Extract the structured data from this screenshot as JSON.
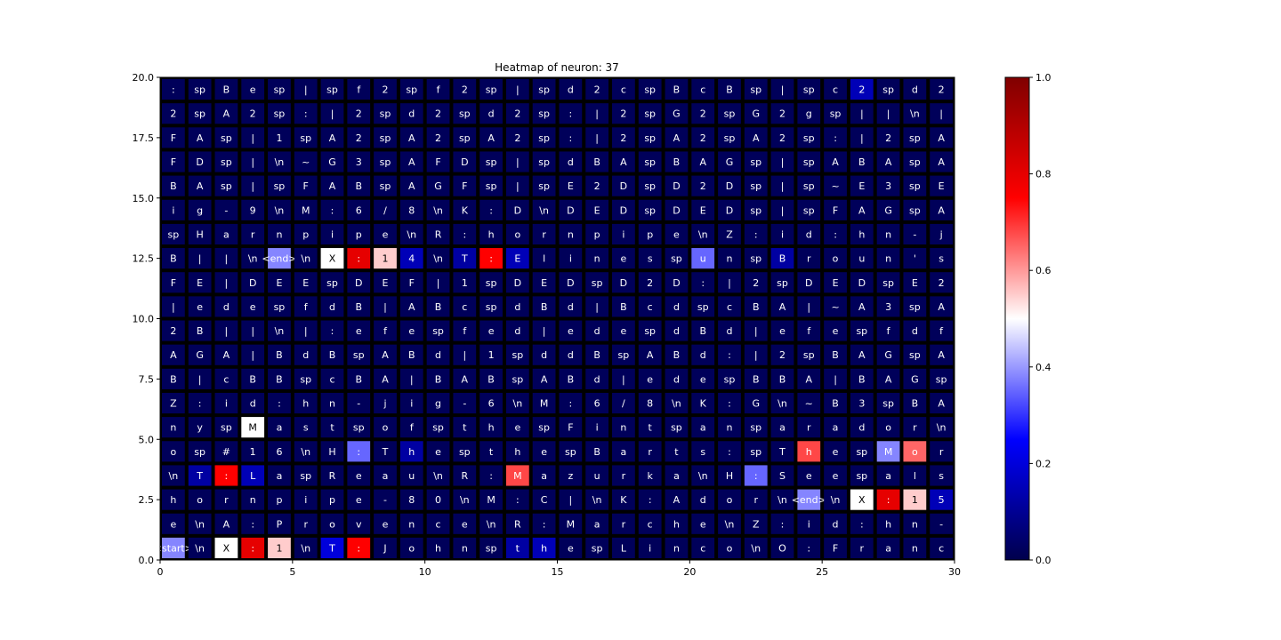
{
  "chart_data": {
    "type": "heatmap",
    "title": "Heatmap of neuron: 37",
    "xlim": [
      0,
      30
    ],
    "ylim": [
      0,
      20
    ],
    "x_ticks": [
      0,
      5,
      10,
      15,
      20,
      25,
      30
    ],
    "y_ticks": [
      0.0,
      2.5,
      5.0,
      7.5,
      10.0,
      12.5,
      15.0,
      17.5,
      20.0
    ],
    "x_tick_labels": [
      "0",
      "5",
      "10",
      "15",
      "20",
      "25",
      "30"
    ],
    "y_tick_labels": [
      "0.0",
      "2.5",
      "5.0",
      "7.5",
      "10.0",
      "12.5",
      "15.0",
      "17.5",
      "20.0"
    ],
    "colorbar": {
      "min": 0.0,
      "max": 1.0,
      "ticks": [
        0.0,
        0.2,
        0.4,
        0.6,
        0.8,
        1.0
      ],
      "tick_labels": [
        "0.0",
        "0.2",
        "0.4",
        "0.6",
        "0.8",
        "1.0"
      ],
      "colormap": "seismic"
    },
    "rows_top_to_bottom": [
      [
        ":",
        "sp",
        "B",
        "e",
        "sp",
        "|",
        "sp",
        "f",
        "2",
        "sp",
        "f",
        "2",
        "sp",
        "|",
        "sp",
        "d",
        "2",
        "c",
        "sp",
        "B",
        "c",
        "B",
        "sp",
        "|",
        "sp",
        "c",
        "2",
        "sp",
        "d",
        "2"
      ],
      [
        "2",
        "sp",
        "A",
        "2",
        "sp",
        ":",
        "|",
        "2",
        "sp",
        "d",
        "2",
        "sp",
        "d",
        "2",
        "sp",
        ":",
        "|",
        "2",
        "sp",
        "G",
        "2",
        "sp",
        "G",
        "2",
        "g",
        "sp",
        "|",
        "|",
        "\\n",
        "|"
      ],
      [
        "F",
        "A",
        "sp",
        "|",
        "1",
        "sp",
        "A",
        "2",
        "sp",
        "A",
        "2",
        "sp",
        "A",
        "2",
        "sp",
        ":",
        "|",
        "2",
        "sp",
        "A",
        "2",
        "sp",
        "A",
        "2",
        "sp",
        ":",
        "|",
        "2",
        "sp",
        "A"
      ],
      [
        "F",
        "D",
        "sp",
        "|",
        "\\n",
        "~",
        "G",
        "3",
        "sp",
        "A",
        "F",
        "D",
        "sp",
        "|",
        "sp",
        "d",
        "B",
        "A",
        "sp",
        "B",
        "A",
        "G",
        "sp",
        "|",
        "sp",
        "A",
        "B",
        "A",
        "sp",
        "A"
      ],
      [
        "B",
        "A",
        "sp",
        "|",
        "sp",
        "F",
        "A",
        "B",
        "sp",
        "A",
        "G",
        "F",
        "sp",
        "|",
        "sp",
        "E",
        "2",
        "D",
        "sp",
        "D",
        "2",
        "D",
        "sp",
        "|",
        "sp",
        "~",
        "E",
        "3",
        "sp",
        "E"
      ],
      [
        "i",
        "g",
        "-",
        "9",
        "\\n",
        "M",
        ":",
        "6",
        "/",
        "8",
        "\\n",
        "K",
        ":",
        "D",
        "\\n",
        "D",
        "E",
        "D",
        "sp",
        "D",
        "E",
        "D",
        "sp",
        "|",
        "sp",
        "F",
        "A",
        "G",
        "sp",
        "A"
      ],
      [
        "sp",
        "H",
        "a",
        "r",
        "n",
        "p",
        "i",
        "p",
        "e",
        "\\n",
        "R",
        ":",
        "h",
        "o",
        "r",
        "n",
        "p",
        "i",
        "p",
        "e",
        "\\n",
        "Z",
        ":",
        "i",
        "d",
        ":",
        "h",
        "n",
        "-",
        "j"
      ],
      [
        "B",
        "|",
        "|",
        "\\n",
        "<end>",
        "\\n",
        "X",
        ":",
        "1",
        "4",
        "\\n",
        "T",
        ":",
        "E",
        "l",
        "i",
        "n",
        "e",
        "s",
        "sp",
        "u",
        "n",
        "sp",
        "B",
        "r",
        "o",
        "u",
        "n",
        "'",
        "s"
      ],
      [
        "F",
        "E",
        "|",
        "D",
        "E",
        "E",
        "sp",
        "D",
        "E",
        "F",
        "|",
        "1",
        "sp",
        "D",
        "E",
        "D",
        "sp",
        "D",
        "2",
        "D",
        ":",
        "|",
        "2",
        "sp",
        "D",
        "E",
        "D",
        "sp",
        "E",
        "2"
      ],
      [
        "|",
        "e",
        "d",
        "e",
        "sp",
        "f",
        "d",
        "B",
        "|",
        "A",
        "B",
        "c",
        "sp",
        "d",
        "B",
        "d",
        "|",
        "B",
        "c",
        "d",
        "sp",
        "c",
        "B",
        "A",
        "|",
        "~",
        "A",
        "3",
        "sp",
        "A"
      ],
      [
        "2",
        "B",
        "|",
        "|",
        "\\n",
        "|",
        ":",
        "e",
        "f",
        "e",
        "sp",
        "f",
        "e",
        "d",
        "|",
        "e",
        "d",
        "e",
        "sp",
        "d",
        "B",
        "d",
        "|",
        "e",
        "f",
        "e",
        "sp",
        "f",
        "d",
        "f"
      ],
      [
        "A",
        "G",
        "A",
        "|",
        "B",
        "d",
        "B",
        "sp",
        "A",
        "B",
        "d",
        "|",
        "1",
        "sp",
        "d",
        "d",
        "B",
        "sp",
        "A",
        "B",
        "d",
        ":",
        "|",
        "2",
        "sp",
        "B",
        "A",
        "G",
        "sp",
        "A"
      ],
      [
        "B",
        "|",
        "c",
        "B",
        "B",
        "sp",
        "c",
        "B",
        "A",
        "|",
        "B",
        "A",
        "B",
        "sp",
        "A",
        "B",
        "d",
        "|",
        "e",
        "d",
        "e",
        "sp",
        "B",
        "B",
        "A",
        "|",
        "B",
        "A",
        "G",
        "sp"
      ],
      [
        "Z",
        ":",
        "i",
        "d",
        ":",
        "h",
        "n",
        "-",
        "j",
        "i",
        "g",
        "-",
        "6",
        "\\n",
        "M",
        ":",
        "6",
        "/",
        "8",
        "\\n",
        "K",
        ":",
        "G",
        "\\n",
        "~",
        "B",
        "3",
        "sp",
        "B",
        "A"
      ],
      [
        "n",
        "y",
        "sp",
        "M",
        "a",
        "s",
        "t",
        "sp",
        "o",
        "f",
        "sp",
        "t",
        "h",
        "e",
        "sp",
        "F",
        "i",
        "n",
        "t",
        "sp",
        "a",
        "n",
        "sp",
        "a",
        "r",
        "a",
        "d",
        "o",
        "r",
        "\\n"
      ],
      [
        "o",
        "sp",
        "#",
        "1",
        "6",
        "\\n",
        "H",
        ":",
        "T",
        "h",
        "e",
        "sp",
        "t",
        "h",
        "e",
        "sp",
        "B",
        "a",
        "r",
        "t",
        "s",
        ":",
        "sp",
        "T",
        "h",
        "e",
        "sp",
        "M",
        "o",
        "r"
      ],
      [
        "\\n",
        "T",
        ":",
        "L",
        "a",
        "sp",
        "R",
        "e",
        "a",
        "u",
        "\\n",
        "R",
        ":",
        "M",
        "a",
        "z",
        "u",
        "r",
        "k",
        "a",
        "\\n",
        "H",
        ":",
        "S",
        "e",
        "e",
        "sp",
        "a",
        "l",
        "s"
      ],
      [
        "h",
        "o",
        "r",
        "n",
        "p",
        "i",
        "p",
        "e",
        "-",
        "8",
        "0",
        "\\n",
        "M",
        ":",
        "C",
        "|",
        "\\n",
        "K",
        ":",
        "A",
        "d",
        "o",
        "r",
        "\\n",
        "<end>",
        "\\n",
        "X",
        ":",
        "1",
        "5"
      ],
      [
        "e",
        "\\n",
        "A",
        ":",
        "P",
        "r",
        "o",
        "v",
        "e",
        "n",
        "c",
        "e",
        "\\n",
        "R",
        ":",
        "M",
        "a",
        "r",
        "c",
        "h",
        "e",
        "\\n",
        "Z",
        ":",
        "i",
        "d",
        ":",
        "h",
        "n",
        "-"
      ],
      [
        "<start>",
        "\\n",
        "X",
        ":",
        "1",
        "\\n",
        "T",
        ":",
        "J",
        "o",
        "h",
        "n",
        "sp",
        "t",
        "h",
        "e",
        "sp",
        "L",
        "i",
        "n",
        "c",
        "o",
        "\\n",
        "O",
        ":",
        "F",
        "r",
        "a",
        "n",
        "c"
      ]
    ],
    "highlighted_cells": [
      {
        "row": 0,
        "col": 26,
        "value": 0.15
      },
      {
        "row": 7,
        "col": 4,
        "value": 0.38
      },
      {
        "row": 7,
        "col": 6,
        "value": 0.5
      },
      {
        "row": 7,
        "col": 7,
        "value": 0.8
      },
      {
        "row": 7,
        "col": 8,
        "value": 0.55
      },
      {
        "row": 7,
        "col": 9,
        "value": 0.15
      },
      {
        "row": 7,
        "col": 11,
        "value": 0.12
      },
      {
        "row": 7,
        "col": 12,
        "value": 0.75
      },
      {
        "row": 7,
        "col": 13,
        "value": 0.15
      },
      {
        "row": 7,
        "col": 20,
        "value": 0.35
      },
      {
        "row": 7,
        "col": 23,
        "value": 0.12
      },
      {
        "row": 14,
        "col": 3,
        "value": 0.5
      },
      {
        "row": 15,
        "col": 7,
        "value": 0.35
      },
      {
        "row": 15,
        "col": 9,
        "value": 0.12
      },
      {
        "row": 15,
        "col": 24,
        "value": 0.68
      },
      {
        "row": 15,
        "col": 27,
        "value": 0.38
      },
      {
        "row": 15,
        "col": 28,
        "value": 0.65
      },
      {
        "row": 16,
        "col": 1,
        "value": 0.12
      },
      {
        "row": 16,
        "col": 2,
        "value": 0.75
      },
      {
        "row": 16,
        "col": 3,
        "value": 0.15
      },
      {
        "row": 16,
        "col": 13,
        "value": 0.68
      },
      {
        "row": 16,
        "col": 22,
        "value": 0.35
      },
      {
        "row": 17,
        "col": 24,
        "value": 0.38
      },
      {
        "row": 17,
        "col": 26,
        "value": 0.5
      },
      {
        "row": 17,
        "col": 27,
        "value": 0.8
      },
      {
        "row": 17,
        "col": 28,
        "value": 0.55
      },
      {
        "row": 17,
        "col": 29,
        "value": 0.15
      },
      {
        "row": 19,
        "col": 0,
        "value": 0.38
      },
      {
        "row": 19,
        "col": 2,
        "value": 0.5
      },
      {
        "row": 19,
        "col": 3,
        "value": 0.8
      },
      {
        "row": 19,
        "col": 4,
        "value": 0.55
      },
      {
        "row": 19,
        "col": 6,
        "value": 0.2
      },
      {
        "row": 19,
        "col": 7,
        "value": 0.75
      },
      {
        "row": 19,
        "col": 13,
        "value": 0.12
      },
      {
        "row": 19,
        "col": 14,
        "value": 0.15
      }
    ],
    "default_value": 0.02
  }
}
